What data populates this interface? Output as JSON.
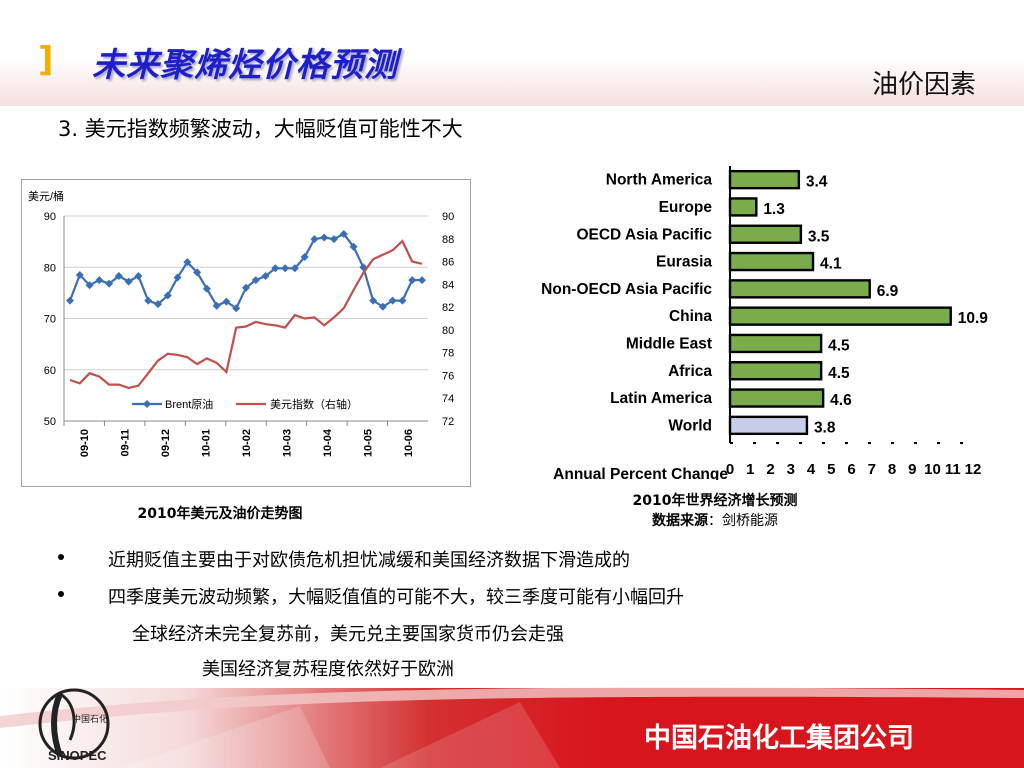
{
  "header": {
    "bracket": "]",
    "title": "未来聚烯烃价格预测",
    "tag": "油价因素"
  },
  "subtitle": "3. 美元指数频繁波动，大幅贬值可能性不大",
  "left_chart_caption": "2010年美元及油价走势图",
  "right_chart_caption": {
    "line1": "2010年世界经济增长预测",
    "line2_bold": "数据来源",
    "line2_rest": "：剑桥能源"
  },
  "bullets": [
    "近期贬值主要由于对欧债危机担忧减缓和美国经济数据下滑造成的",
    "四季度美元波动频繁，大幅贬值值的可能不大，较三季度可能有小幅回升"
  ],
  "plain_lines": [
    "全球经济未完全复苏前，美元兑主要国家货币仍会走强",
    "美国经济复苏程度依然好于欧洲"
  ],
  "footer": {
    "company": "中国石油化工集团公司",
    "logo_text": "中国石化",
    "logo_brand": "SINOPEC"
  },
  "chart_data": [
    {
      "type": "line",
      "ylabel": "美元/桶",
      "x_ticks": [
        "09-10",
        "09-11",
        "09-12",
        "10-01",
        "10-02",
        "10-03",
        "10-04",
        "10-05",
        "10-06"
      ],
      "left_axis": {
        "ylim": [
          50,
          90
        ],
        "ticks": [
          50,
          60,
          70,
          80,
          90
        ]
      },
      "right_axis": {
        "ylim": [
          72,
          90
        ],
        "ticks": [
          72,
          74,
          76,
          78,
          80,
          82,
          84,
          86,
          88,
          90
        ]
      },
      "grid": true,
      "legend": "bottom-inside",
      "series": [
        {
          "name": "Brent原油",
          "axis": "left",
          "color": "#3a6fb5",
          "marker": "diamond",
          "values": [
            73.5,
            78.5,
            76.5,
            77.5,
            76.8,
            78.3,
            77.2,
            78.3,
            73.5,
            72.8,
            74.5,
            78.0,
            81.0,
            79.0,
            75.8,
            72.5,
            73.3,
            72.0,
            76.0,
            77.5,
            78.3,
            79.8,
            79.8,
            79.8,
            82.0,
            85.5,
            85.8,
            85.5,
            86.5,
            84.0,
            80.0,
            73.5,
            72.3,
            73.5,
            73.5,
            77.5,
            77.5
          ]
        },
        {
          "name": "美元指数（右轴）",
          "axis": "right",
          "color": "#c0504d",
          "marker": "none",
          "values": [
            75.6,
            75.3,
            76.2,
            75.9,
            75.2,
            75.2,
            74.9,
            75.1,
            76.2,
            77.3,
            77.9,
            77.8,
            77.6,
            77.0,
            77.5,
            77.1,
            76.3,
            80.2,
            80.3,
            80.7,
            80.5,
            80.4,
            80.2,
            81.3,
            81.0,
            81.1,
            80.4,
            81.1,
            81.9,
            83.5,
            85.0,
            86.2,
            86.6,
            87.0,
            87.8,
            86.0,
            85.8
          ]
        }
      ]
    },
    {
      "type": "bar",
      "orientation": "horizontal",
      "xlabel": "Annual Percent Change",
      "xlim": [
        0,
        12
      ],
      "x_ticks": [
        0,
        1,
        2,
        3,
        4,
        5,
        6,
        7,
        8,
        9,
        10,
        11,
        12
      ],
      "categories": [
        "North America",
        "Europe",
        "OECD Asia Pacific",
        "Eurasia",
        "Non-OECD Asia Pacific",
        "China",
        "Middle East",
        "Africa",
        "Latin America",
        "World"
      ],
      "values": [
        3.4,
        1.3,
        3.5,
        4.1,
        6.9,
        10.9,
        4.5,
        4.5,
        4.6,
        3.8
      ],
      "value_labels": [
        "3.4",
        "1.3",
        "3.5",
        "4.1",
        "6.9",
        "10.9",
        "4.5",
        "4.5",
        "4.6",
        "3.8"
      ],
      "colors": {
        "region": "#7aac4c",
        "world": "#c5cde8"
      }
    }
  ]
}
